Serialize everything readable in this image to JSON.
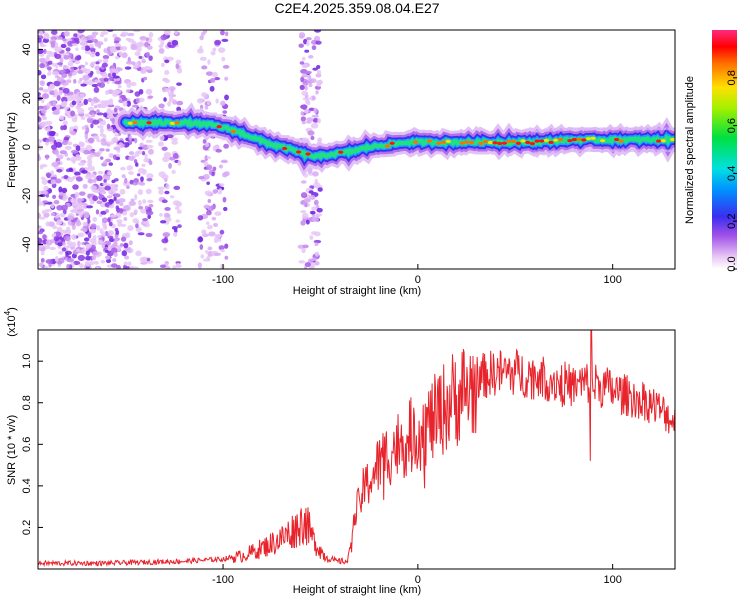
{
  "title": "C2E4.2025.359.08.04.E27",
  "colors": {
    "line": "#e8232b",
    "axis": "#000000"
  },
  "chart_data": [
    {
      "type": "heatmap",
      "xlabel": "Height of straight line (km)",
      "ylabel": "Frequency (Hz)",
      "xlim": [
        -195,
        132
      ],
      "ylim": [
        -50,
        48
      ],
      "xticks": [
        -100,
        0,
        100
      ],
      "yticks": [
        -40,
        -20,
        0,
        20,
        40
      ],
      "colorbar": {
        "label": "Normalized spectral amplitude",
        "range": [
          0,
          1
        ],
        "ticks": [
          "0.0",
          "0.2",
          "0.4",
          "0.6",
          "0.8"
        ]
      },
      "ridge_frequency_track": {
        "x": [
          -150,
          -135,
          -120,
          -105,
          -95,
          -85,
          -75,
          -65,
          -58,
          -52,
          -45,
          -35,
          -25,
          -15,
          -5,
          5,
          20,
          40,
          60,
          80,
          100,
          130
        ],
        "y": [
          10,
          10,
          10,
          9,
          7,
          4,
          1,
          -1,
          -3,
          -4,
          -3,
          -2,
          0,
          1,
          2,
          2,
          2,
          2,
          2,
          3,
          3,
          3
        ]
      }
    },
    {
      "type": "line",
      "xlabel": "Height of straight line (km)",
      "ylabel": "SNR (10 * v/v)",
      "y_multiplier": "(x10^4)",
      "y_multiplier_base": "(x10",
      "y_multiplier_exp": "4",
      "y_multiplier_close": ")",
      "xlim": [
        -195,
        132
      ],
      "ylim": [
        0,
        1.15
      ],
      "xticks": [
        -100,
        0,
        100
      ],
      "yticks": [
        "0.2",
        "0.4",
        "0.6",
        "0.8",
        "1.0"
      ],
      "envelope": {
        "x": [
          -195,
          -160,
          -120,
          -100,
          -90,
          -80,
          -70,
          -62,
          -58,
          -54,
          -48,
          -42,
          -36,
          -32,
          -28,
          -22,
          -18,
          -12,
          -6,
          0,
          6,
          10,
          15,
          20,
          30,
          40,
          50,
          60,
          70,
          80,
          88,
          95,
          105,
          115,
          122,
          128,
          132
        ],
        "y": [
          0.03,
          0.03,
          0.04,
          0.05,
          0.07,
          0.11,
          0.16,
          0.22,
          0.26,
          0.16,
          0.07,
          0.04,
          0.04,
          0.28,
          0.4,
          0.5,
          0.56,
          0.62,
          0.66,
          0.7,
          0.74,
          0.78,
          0.84,
          0.88,
          0.94,
          0.97,
          0.97,
          0.95,
          0.93,
          0.9,
          0.92,
          0.9,
          0.86,
          0.84,
          0.8,
          0.76,
          0.72
        ]
      },
      "peak": {
        "x": 89,
        "y": 1.16
      },
      "dip": {
        "x": 88,
        "y": 0.52
      }
    }
  ]
}
